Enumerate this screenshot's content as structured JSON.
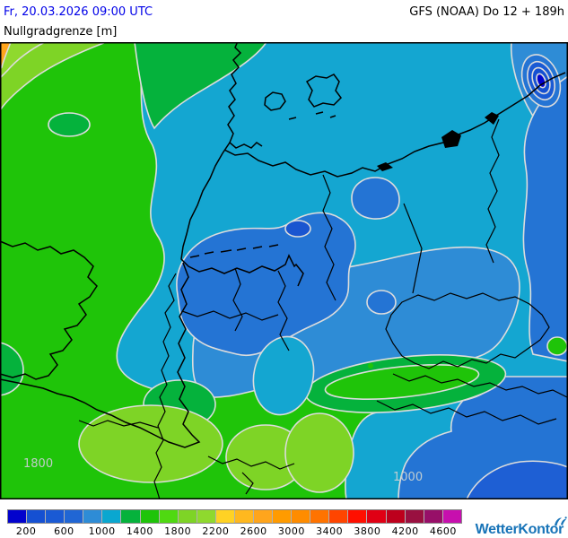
{
  "header": {
    "datetime": "Fr, 20.03.2026 09:00 UTC",
    "parameter": "Nullgradgrenze [m]",
    "model_run": "GFS (NOAA) Do 12 + 189h"
  },
  "map": {
    "labels": {
      "southwest": "1800",
      "southeast": "1000"
    },
    "contour_line_color": "#dcdcdc",
    "border_line_color": "#000000"
  },
  "legend": {
    "values": [
      "200",
      "600",
      "1000",
      "1400",
      "1800",
      "2200",
      "2600",
      "3000",
      "3400",
      "3800",
      "4200",
      "4600"
    ],
    "colors": [
      "#0202CD",
      "#1550D2",
      "#1A5AD4",
      "#2066D4",
      "#2E8CD6",
      "#0AA7D0",
      "#05B23C",
      "#1FC409",
      "#4FD911",
      "#7ED426",
      "#8FD92E",
      "#FFD224",
      "#FFB81F",
      "#FFA51C",
      "#FF9B00",
      "#FF8C00",
      "#FF7300",
      "#FF4500",
      "#FF0F00",
      "#E00014",
      "#BD001C",
      "#991040",
      "#970F68",
      "#C70FAE"
    ]
  },
  "branding": {
    "logo_text": "WetterKontor",
    "logo_color": "#1874b8"
  }
}
